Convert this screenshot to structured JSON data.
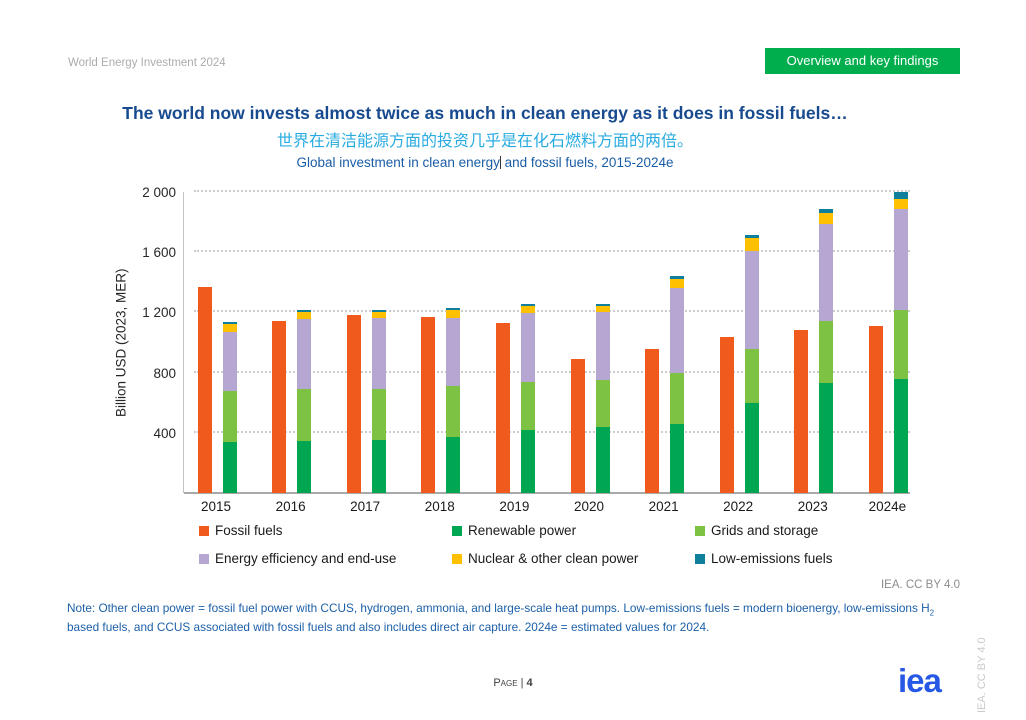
{
  "header": {
    "report_label": "World Energy Investment 2024",
    "badge_label": "Overview and key findings",
    "badge_color": "#00ae4e"
  },
  "titles": {
    "main": "The world now invests almost twice as much in clean energy as it does in fossil fuels…",
    "chinese": "世界在清洁能源方面的投资几乎是在化石燃料方面的两倍。",
    "subtitle_part1": "Global investment in clean energy",
    "subtitle_part2": " and fossil fuels, 2015-2024e"
  },
  "chart_data": {
    "type": "bar",
    "title": "Global investment in clean energy and fossil fuels, 2015-2024e",
    "ylabel": "Billion USD (2023, MER)",
    "ylim": [
      0,
      2000
    ],
    "grid": "dotted horizontal",
    "legend_position": "bottom",
    "yticks": [
      {
        "value": 400,
        "label": "400"
      },
      {
        "value": 800,
        "label": "800"
      },
      {
        "value": 1200,
        "label": "1 200"
      },
      {
        "value": 1600,
        "label": "1 600"
      },
      {
        "value": 2000,
        "label": "2 000"
      }
    ],
    "categories": [
      "2015",
      "2016",
      "2017",
      "2018",
      "2019",
      "2020",
      "2021",
      "2022",
      "2023",
      "2024e"
    ],
    "series": [
      {
        "name": "Fossil fuels",
        "stack": "fossil",
        "color": "#f05a1c",
        "values": [
          1370,
          1140,
          1185,
          1170,
          1130,
          890,
          955,
          1035,
          1080,
          1110
        ]
      },
      {
        "name": "Renewable power",
        "stack": "clean",
        "color": "#00a651",
        "values": [
          340,
          345,
          350,
          375,
          420,
          440,
          460,
          595,
          730,
          760
        ]
      },
      {
        "name": "Grids and storage",
        "stack": "clean",
        "color": "#7dc242",
        "values": [
          340,
          345,
          340,
          335,
          320,
          310,
          335,
          365,
          410,
          455
        ]
      },
      {
        "name": "Energy efficiency and end-use",
        "stack": "clean",
        "color": "#b5a6d2",
        "values": [
          390,
          465,
          470,
          455,
          455,
          450,
          565,
          645,
          650,
          670
        ]
      },
      {
        "name": "Nuclear & other clean power",
        "stack": "clean",
        "color": "#ffc000",
        "values": [
          55,
          50,
          45,
          50,
          50,
          45,
          65,
          90,
          70,
          70
        ]
      },
      {
        "name": "Low-emissions fuels",
        "stack": "clean",
        "color": "#0f7f9b",
        "values": [
          10,
          10,
          10,
          15,
          10,
          10,
          20,
          20,
          30,
          45
        ]
      }
    ]
  },
  "attribution": {
    "cc_text": "IEA. CC BY 4.0",
    "vertical_cc_text": "IEA. CC BY 4.0"
  },
  "note": {
    "text_before_sub": "Note: Other clean power = fossil fuel power with CCUS, hydrogen, ammonia, and large-scale heat pumps. Low-emissions fuels = modern bioenergy, low-emissions H",
    "sub": "2",
    "text_after_sub": " based fuels, and CCUS associated with fossil fuels and also includes direct air capture. 2024e = estimated values for 2024."
  },
  "footer": {
    "page_label": "Page | ",
    "page_number": "4",
    "logo_text": "iea"
  }
}
